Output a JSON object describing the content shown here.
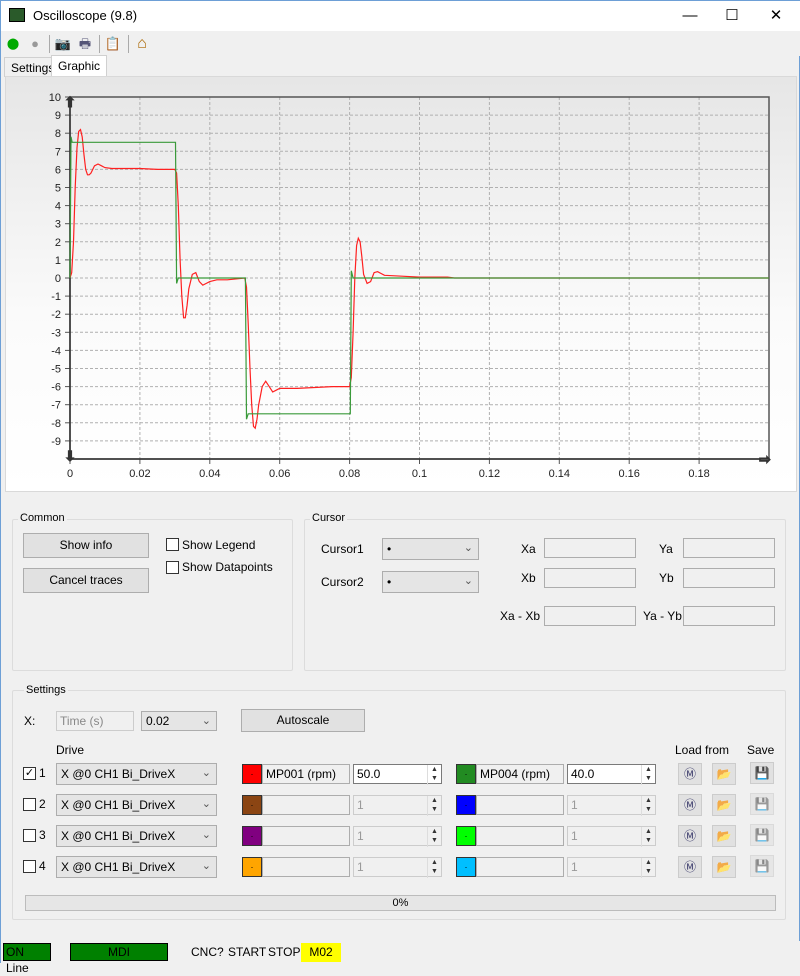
{
  "window": {
    "title": "Oscilloscope (9.8)",
    "minimize": "—",
    "maximize": "☐",
    "close": "✕"
  },
  "toolbar": [
    {
      "icon": "start-icon",
      "glyph": "➡",
      "color": "#e8e800"
    },
    {
      "icon": "stop-icon",
      "glyph": "●",
      "color": "#999999"
    },
    {
      "icon": "camera-icon",
      "glyph": "📷"
    },
    {
      "icon": "print-icon",
      "glyph": "🖶"
    },
    {
      "icon": "clipboard-icon",
      "glyph": "📋"
    },
    {
      "icon": "home-icon",
      "glyph": "⌂"
    }
  ],
  "tabs": [
    {
      "label": "Settings"
    },
    {
      "label": "Graphic",
      "active": true
    }
  ],
  "chart_data": {
    "type": "line",
    "xlim": [
      0,
      0.2
    ],
    "ylim": [
      -10,
      10
    ],
    "grid": true,
    "x_ticks": [
      "0",
      "0.02",
      "0.04",
      "0.06",
      "0.08",
      "0.1",
      "0.12",
      "0.14",
      "0.16",
      "0.18"
    ],
    "y_ticks": [
      "10",
      "9",
      "8",
      "7",
      "6",
      "5",
      "4",
      "3",
      "2",
      "1",
      "0",
      "-1",
      "-2",
      "-3",
      "-4",
      "-5",
      "-6",
      "-7",
      "-8",
      "-9"
    ],
    "series": [
      {
        "color": "#ff2020",
        "x": [
          0,
          0.0005,
          0.001,
          0.0015,
          0.002,
          0.0025,
          0.003,
          0.0035,
          0.004,
          0.0045,
          0.005,
          0.0055,
          0.006,
          0.007,
          0.008,
          0.009,
          0.01,
          0.012,
          0.015,
          0.02,
          0.025,
          0.03,
          0.0305,
          0.031,
          0.0315,
          0.032,
          0.0325,
          0.033,
          0.0335,
          0.034,
          0.035,
          0.036,
          0.037,
          0.038,
          0.039,
          0.04,
          0.042,
          0.045,
          0.05,
          0.0505,
          0.051,
          0.0515,
          0.052,
          0.0525,
          0.053,
          0.0535,
          0.054,
          0.055,
          0.056,
          0.057,
          0.058,
          0.059,
          0.06,
          0.065,
          0.07,
          0.075,
          0.08,
          0.0805,
          0.081,
          0.0815,
          0.082,
          0.0825,
          0.083,
          0.0835,
          0.084,
          0.085,
          0.086,
          0.087,
          0.088,
          0.089,
          0.09,
          0.095,
          0.1,
          0.105,
          0.108,
          0.11,
          0.2
        ],
        "y": [
          0,
          0.3,
          2,
          5,
          7.2,
          8.1,
          8.2,
          7.8,
          6.8,
          6,
          5.7,
          5.7,
          5.8,
          6.2,
          6.3,
          6.2,
          6.1,
          6.05,
          6.05,
          6.05,
          6.0,
          6.0,
          5.8,
          4,
          1,
          -1,
          -2.2,
          -2.2,
          -1.5,
          -0.6,
          0.2,
          0.3,
          -0.2,
          -0.4,
          -0.3,
          -0.2,
          -0.1,
          -0.1,
          0,
          -0.5,
          -2.5,
          -5,
          -7,
          -8.2,
          -8.3,
          -7.8,
          -7,
          -6,
          -5.7,
          -6,
          -6.3,
          -6.2,
          -6.1,
          -6.1,
          -6.05,
          -6.0,
          -6.0,
          -5.5,
          -3,
          0,
          1.8,
          2.2,
          2,
          1.2,
          0.2,
          -0.3,
          -0.2,
          0.3,
          0.35,
          0.25,
          0.15,
          0.1,
          0.05,
          0.05,
          0.05,
          0,
          0
        ]
      },
      {
        "color": "#3a9a3a",
        "x": [
          0,
          0.0003,
          0.0006,
          0.001,
          0.0302,
          0.0305,
          0.031,
          0.0502,
          0.0505,
          0.051,
          0.0802,
          0.0805,
          0.081,
          0.2
        ],
        "y": [
          0,
          7.8,
          7.5,
          7.5,
          7.5,
          -0.3,
          0,
          0,
          -7.8,
          -7.5,
          -7.5,
          0.4,
          0,
          0
        ]
      }
    ]
  },
  "common": {
    "label": "Common",
    "show_info": "Show info",
    "cancel_traces": "Cancel traces",
    "show_legend": "Show Legend",
    "show_datapoints": "Show Datapoints"
  },
  "cursor": {
    "label": "Cursor",
    "cursor1": "Cursor1",
    "cursor2": "Cursor2",
    "cursor1_value": "•",
    "cursor2_value": "•",
    "xa": "Xa",
    "ya": "Ya",
    "xb": "Xb",
    "yb": "Yb",
    "xa_xb": "Xa - Xb",
    "ya_yb": "Ya - Yb"
  },
  "settings": {
    "label": "Settings",
    "x_label": "X:",
    "x_field": "Time (s)",
    "x_scale": "0.02",
    "autoscale": "Autoscale",
    "drive_header": "Drive",
    "load_header": "Load from",
    "save_header": "Save",
    "rows": [
      {
        "num": "1",
        "checked": true,
        "drive": "X @0 CH1 Bi_DriveX",
        "c1": "#ff0000",
        "v1": "MP001 (rpm)",
        "s1": "50.0",
        "c2": "#228b22",
        "v2": "MP004 (rpm)",
        "s2": "40.0",
        "enabled": true
      },
      {
        "num": "2",
        "checked": false,
        "drive": "X @0 CH1 Bi_DriveX",
        "c1": "#8b4513",
        "v1": "",
        "s1": "1",
        "c2": "#0000ff",
        "v2": "",
        "s2": "1",
        "enabled": false
      },
      {
        "num": "3",
        "checked": false,
        "drive": "X @0 CH1 Bi_DriveX",
        "c1": "#800080",
        "v1": "",
        "s1": "1",
        "c2": "#00ff00",
        "v2": "",
        "s2": "1",
        "enabled": false
      },
      {
        "num": "4",
        "checked": false,
        "drive": "X @0 CH1 Bi_DriveX",
        "c1": "#ffa500",
        "v1": "",
        "s1": "1",
        "c2": "#00bfff",
        "v2": "",
        "s2": "1",
        "enabled": false
      }
    ],
    "progress": "0%",
    "progress_value": 0
  },
  "status": {
    "online": "ON Line",
    "mode": "MDI",
    "cnc": "CNC?",
    "start": "START",
    "stop": "STOP",
    "m02": "M02",
    "green": "#008000",
    "yellow": "#ffff00"
  }
}
